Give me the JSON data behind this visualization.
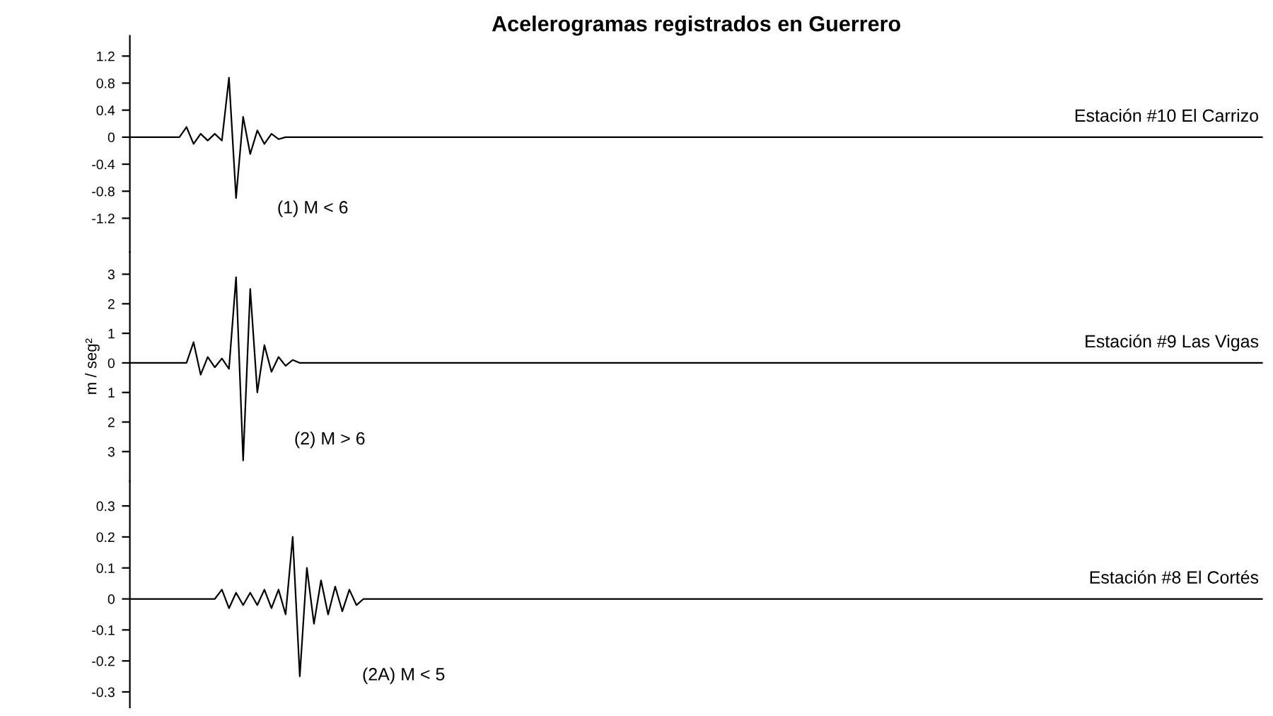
{
  "chart_data": [
    {
      "type": "line",
      "title": "Acelerogramas registrados en Guerrero",
      "categories": [
        null,
        null,
        null,
        null,
        null,
        null,
        null,
        null,
        null,
        null,
        null,
        null,
        null,
        null,
        null,
        null,
        null,
        null,
        null,
        null,
        null,
        null,
        null,
        null,
        null,
        null,
        null,
        null,
        null,
        null,
        null,
        null,
        null,
        null,
        null,
        null,
        null,
        null,
        null,
        null,
        null,
        null,
        null,
        null,
        null,
        null,
        null,
        null,
        null,
        null,
        null,
        null,
        null,
        null,
        null,
        null,
        null,
        null,
        null,
        null,
        null,
        null,
        null,
        null,
        null,
        null,
        null,
        null,
        null,
        null,
        null,
        null,
        null,
        null,
        null,
        null,
        null,
        null,
        null,
        null,
        null,
        null,
        null,
        null,
        null,
        null,
        null,
        null,
        null,
        null,
        null,
        null,
        null,
        null,
        null,
        null,
        null,
        null,
        null,
        null,
        null,
        null,
        null,
        null,
        null,
        null,
        null,
        null,
        null,
        null,
        null,
        null,
        null,
        null,
        null,
        null,
        null,
        null,
        null,
        null,
        null,
        null,
        null,
        null,
        null,
        null,
        null,
        null,
        null,
        null,
        null,
        null,
        null,
        null,
        null,
        null,
        null,
        null,
        null,
        null,
        null,
        null,
        null,
        null,
        null,
        null,
        null,
        null,
        null,
        null,
        null,
        null,
        null,
        null,
        null,
        null,
        null,
        null,
        null,
        null,
        null
      ],
      "series": [
        {
          "name": "Estación #10 El Carrizo",
          "color": "#000000",
          "values": [
            0,
            0,
            0,
            0,
            0,
            0,
            0,
            0,
            0.15,
            -0.1,
            0.05,
            -0.05,
            0.05,
            -0.05,
            0.88,
            -0.9,
            0.3,
            -0.25,
            0.1,
            -0.1,
            0.05,
            -0.03,
            0,
            0,
            0,
            0,
            0,
            0,
            0,
            0,
            0,
            0,
            0,
            0,
            0,
            0,
            0,
            0,
            0,
            0,
            0,
            0,
            0,
            0,
            0,
            0,
            0,
            0,
            0,
            0,
            0,
            0,
            0,
            0,
            0,
            0,
            0,
            0,
            0,
            0,
            0,
            0,
            0,
            0,
            0,
            0,
            0,
            0,
            0,
            0,
            0,
            0,
            0,
            0,
            0,
            0,
            0,
            0,
            0,
            0,
            0,
            0,
            0,
            0,
            0,
            0,
            0,
            0,
            0,
            0,
            0,
            0,
            0,
            0,
            0,
            0,
            0,
            0,
            0,
            0,
            0,
            0,
            0,
            0,
            0,
            0,
            0,
            0,
            0,
            0,
            0,
            0,
            0,
            0,
            0,
            0,
            0,
            0,
            0,
            0,
            0,
            0,
            0,
            0,
            0,
            0,
            0,
            0,
            0,
            0,
            0,
            0,
            0,
            0,
            0,
            0,
            0,
            0,
            0,
            0,
            0,
            0,
            0,
            0,
            0,
            0,
            0,
            0,
            0,
            0,
            0,
            0,
            0,
            0,
            0,
            0,
            0,
            0,
            0,
            0,
            0
          ]
        }
      ],
      "ylim": [
        -1.7,
        1.5
      ],
      "yticks": [
        1.2,
        0.8,
        0.4,
        0,
        -0.4,
        -0.8,
        -1.2
      ],
      "tick_labels": "y",
      "annotations": [
        "(1) M < 6"
      ]
    },
    {
      "type": "line",
      "ylabel": "m / seg²",
      "categories": [
        null,
        null,
        null,
        null,
        null,
        null,
        null,
        null,
        null,
        null,
        null,
        null,
        null,
        null,
        null,
        null,
        null,
        null,
        null,
        null,
        null,
        null,
        null,
        null,
        null,
        null,
        null,
        null,
        null,
        null,
        null,
        null,
        null,
        null,
        null,
        null,
        null,
        null,
        null,
        null,
        null,
        null,
        null,
        null,
        null,
        null,
        null,
        null,
        null,
        null,
        null,
        null,
        null,
        null,
        null,
        null,
        null,
        null,
        null,
        null,
        null,
        null,
        null,
        null,
        null,
        null,
        null,
        null,
        null,
        null,
        null,
        null,
        null,
        null,
        null,
        null,
        null,
        null,
        null,
        null,
        null,
        null,
        null,
        null,
        null,
        null,
        null,
        null,
        null,
        null,
        null,
        null,
        null,
        null,
        null,
        null,
        null,
        null,
        null,
        null,
        null,
        null,
        null,
        null,
        null,
        null,
        null,
        null,
        null,
        null,
        null,
        null,
        null,
        null,
        null,
        null,
        null,
        null,
        null,
        null,
        null,
        null,
        null,
        null,
        null,
        null,
        null,
        null,
        null,
        null,
        null,
        null,
        null,
        null,
        null,
        null,
        null,
        null,
        null,
        null,
        null,
        null,
        null,
        null,
        null,
        null,
        null,
        null,
        null,
        null,
        null,
        null,
        null,
        null,
        null,
        null,
        null,
        null,
        null,
        null,
        null
      ],
      "series": [
        {
          "name": "Estación #9 Las Vigas",
          "color": "#000000",
          "values": [
            0,
            0,
            0,
            0,
            0,
            0,
            0,
            0,
            0,
            0.7,
            -0.4,
            0.2,
            -0.15,
            0.15,
            -0.2,
            2.9,
            -3.3,
            2.5,
            -1.0,
            0.6,
            -0.3,
            0.2,
            -0.1,
            0.1,
            0,
            0,
            0,
            0,
            0,
            0,
            0,
            0,
            0,
            0,
            0,
            0,
            0,
            0,
            0,
            0,
            0,
            0,
            0,
            0,
            0,
            0,
            0,
            0,
            0,
            0,
            0,
            0,
            0,
            0,
            0,
            0,
            0,
            0,
            0,
            0,
            0,
            0,
            0,
            0,
            0,
            0,
            0,
            0,
            0,
            0,
            0,
            0,
            0,
            0,
            0,
            0,
            0,
            0,
            0,
            0,
            0,
            0,
            0,
            0,
            0,
            0,
            0,
            0,
            0,
            0,
            0,
            0,
            0,
            0,
            0,
            0,
            0,
            0,
            0,
            0,
            0,
            0,
            0,
            0,
            0,
            0,
            0,
            0,
            0,
            0,
            0,
            0,
            0,
            0,
            0,
            0,
            0,
            0,
            0,
            0,
            0,
            0,
            0,
            0,
            0,
            0,
            0,
            0,
            0,
            0,
            0,
            0,
            0,
            0,
            0,
            0,
            0,
            0,
            0,
            0,
            0,
            0,
            0,
            0,
            0,
            0,
            0,
            0,
            0,
            0,
            0,
            0,
            0,
            0,
            0,
            0,
            0,
            0,
            0,
            0,
            0
          ]
        }
      ],
      "ylim": [
        -4,
        3.75
      ],
      "yticks": [
        3,
        2,
        1,
        0,
        {
          "value": -1,
          "label": "1"
        },
        {
          "value": -2,
          "label": "2"
        },
        {
          "value": -3,
          "label": "3"
        }
      ],
      "tick_labels": "y",
      "annotations": [
        "(2) M > 6"
      ]
    },
    {
      "type": "line",
      "categories": [
        null,
        null,
        null,
        null,
        null,
        null,
        null,
        null,
        null,
        null,
        null,
        null,
        null,
        null,
        null,
        null,
        null,
        null,
        null,
        null,
        null,
        null,
        null,
        null,
        null,
        null,
        null,
        null,
        null,
        null,
        null,
        null,
        null,
        null,
        null,
        null,
        null,
        null,
        null,
        null,
        null,
        null,
        null,
        null,
        null,
        null,
        null,
        null,
        null,
        null,
        null,
        null,
        null,
        null,
        null,
        null,
        null,
        null,
        null,
        null,
        null,
        null,
        null,
        null,
        null,
        null,
        null,
        null,
        null,
        null,
        null,
        null,
        null,
        null,
        null,
        null,
        null,
        null,
        null,
        null,
        null,
        null,
        null,
        null,
        null,
        null,
        null,
        null,
        null,
        null,
        null,
        null,
        null,
        null,
        null,
        null,
        null,
        null,
        null,
        null,
        null,
        null,
        null,
        null,
        null,
        null,
        null,
        null,
        null,
        null,
        null,
        null,
        null,
        null,
        null,
        null,
        null,
        null,
        null,
        null,
        null,
        null,
        null,
        null,
        null,
        null,
        null,
        null,
        null,
        null,
        null,
        null,
        null,
        null,
        null,
        null,
        null,
        null,
        null,
        null,
        null,
        null,
        null,
        null,
        null,
        null,
        null,
        null,
        null,
        null,
        null,
        null,
        null,
        null,
        null,
        null,
        null,
        null,
        null,
        null,
        null
      ],
      "series": [
        {
          "name": "Estación #8 El Cortés",
          "color": "#000000",
          "values": [
            0,
            0,
            0,
            0,
            0,
            0,
            0,
            0,
            0,
            0,
            0,
            0,
            0,
            0.03,
            -0.03,
            0.02,
            -0.02,
            0.02,
            -0.02,
            0.03,
            -0.03,
            0.03,
            -0.05,
            0.2,
            -0.25,
            0.1,
            -0.08,
            0.06,
            -0.05,
            0.04,
            -0.04,
            0.03,
            -0.02,
            0,
            0,
            0,
            0,
            0,
            0,
            0,
            0,
            0,
            0,
            0,
            0,
            0,
            0,
            0,
            0,
            0,
            0,
            0,
            0,
            0,
            0,
            0,
            0,
            0,
            0,
            0,
            0,
            0,
            0,
            0,
            0,
            0,
            0,
            0,
            0,
            0,
            0,
            0,
            0,
            0,
            0,
            0,
            0,
            0,
            0,
            0,
            0,
            0,
            0,
            0,
            0,
            0,
            0,
            0,
            0,
            0,
            0,
            0,
            0,
            0,
            0,
            0,
            0,
            0,
            0,
            0,
            0,
            0,
            0,
            0,
            0,
            0,
            0,
            0,
            0,
            0,
            0,
            0,
            0,
            0,
            0,
            0,
            0,
            0,
            0,
            0,
            0,
            0,
            0,
            0,
            0,
            0,
            0,
            0,
            0,
            0,
            0,
            0,
            0,
            0,
            0,
            0,
            0,
            0,
            0,
            0,
            0,
            0,
            0,
            0,
            0,
            0,
            0,
            0,
            0,
            0,
            0,
            0,
            0,
            0,
            0,
            0,
            0,
            0,
            0,
            0,
            0
          ]
        }
      ],
      "ylim": [
        -0.35,
        0.38
      ],
      "yticks": [
        0.3,
        0.2,
        0.1,
        0,
        -0.1,
        -0.2,
        -0.3
      ],
      "tick_labels": "y",
      "annotations": [
        "(2A) M < 5"
      ]
    }
  ]
}
